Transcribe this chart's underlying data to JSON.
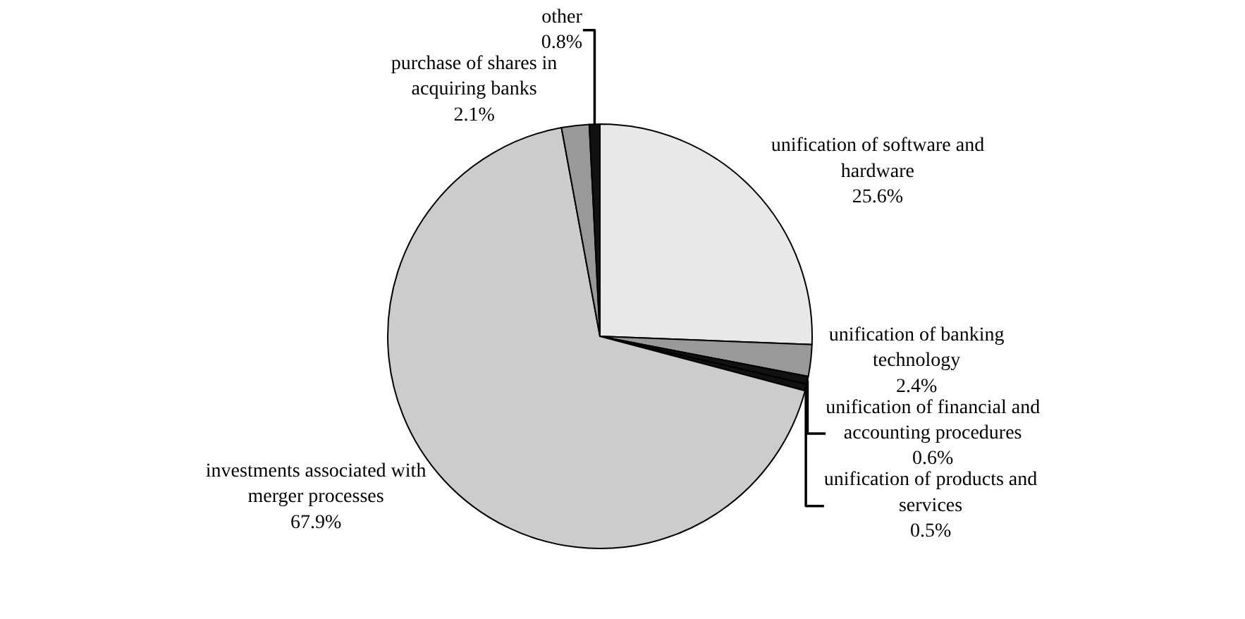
{
  "chart_data": {
    "type": "pie",
    "categories": [
      "unification of software and hardware",
      "unification of banking technology",
      "unification of financial and accounting procedures",
      "unification of products and services",
      "investments associated with merger processes",
      "purchase of shares in acquiring banks",
      "other"
    ],
    "values": [
      25.6,
      2.4,
      0.6,
      0.5,
      67.9,
      2.1,
      0.8
    ],
    "value_labels": [
      "25.6%",
      "2.4%",
      "0.6%",
      "0.5%",
      "67.9%",
      "2.1%",
      "0.8%"
    ],
    "colors": [
      "#e8e8e8",
      "#999999",
      "#111111",
      "#111111",
      "#cccccc",
      "#999999",
      "#111111"
    ],
    "legend": false
  }
}
